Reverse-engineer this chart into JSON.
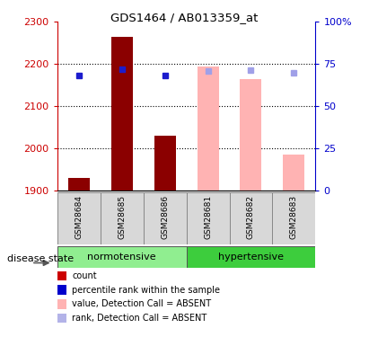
{
  "title": "GDS1464 / AB013359_at",
  "samples": [
    "GSM28684",
    "GSM28685",
    "GSM28686",
    "GSM28681",
    "GSM28682",
    "GSM28683"
  ],
  "bar_values": [
    1930,
    2265,
    2030,
    2195,
    2165,
    1985
  ],
  "bar_colors": [
    "#8b0000",
    "#8b0000",
    "#8b0000",
    "#ffb3b3",
    "#ffb3b3",
    "#ffb3b3"
  ],
  "blue_dot_values": [
    2173,
    2188,
    2172,
    2183,
    2186,
    2180
  ],
  "blue_dot_colors": [
    "#1c1ccd",
    "#1c1ccd",
    "#1c1ccd",
    "#a0a0e8",
    "#a0a0e8",
    "#a0a0e8"
  ],
  "y_min": 1900,
  "y_max": 2300,
  "y_ticks": [
    1900,
    2000,
    2100,
    2200,
    2300
  ],
  "y2_ticks": [
    0,
    25,
    50,
    75,
    100
  ],
  "y2_tick_labels": [
    "0",
    "25",
    "50",
    "75",
    "100%"
  ],
  "group_ranges": [
    [
      0,
      3,
      "normotensive",
      "#90ee90"
    ],
    [
      3,
      6,
      "hypertensive",
      "#3dcd3d"
    ]
  ],
  "disease_state_label": "disease state",
  "legend_items": [
    {
      "color": "#cc0000",
      "label": "count"
    },
    {
      "color": "#0000cc",
      "label": "percentile rank within the sample"
    },
    {
      "color": "#ffb3b3",
      "label": "value, Detection Call = ABSENT"
    },
    {
      "color": "#b3b3e8",
      "label": "rank, Detection Call = ABSENT"
    }
  ],
  "axis_color_left": "#cc0000",
  "axis_color_right": "#0000cc",
  "bar_width": 0.5,
  "bg_color": "#ffffff"
}
